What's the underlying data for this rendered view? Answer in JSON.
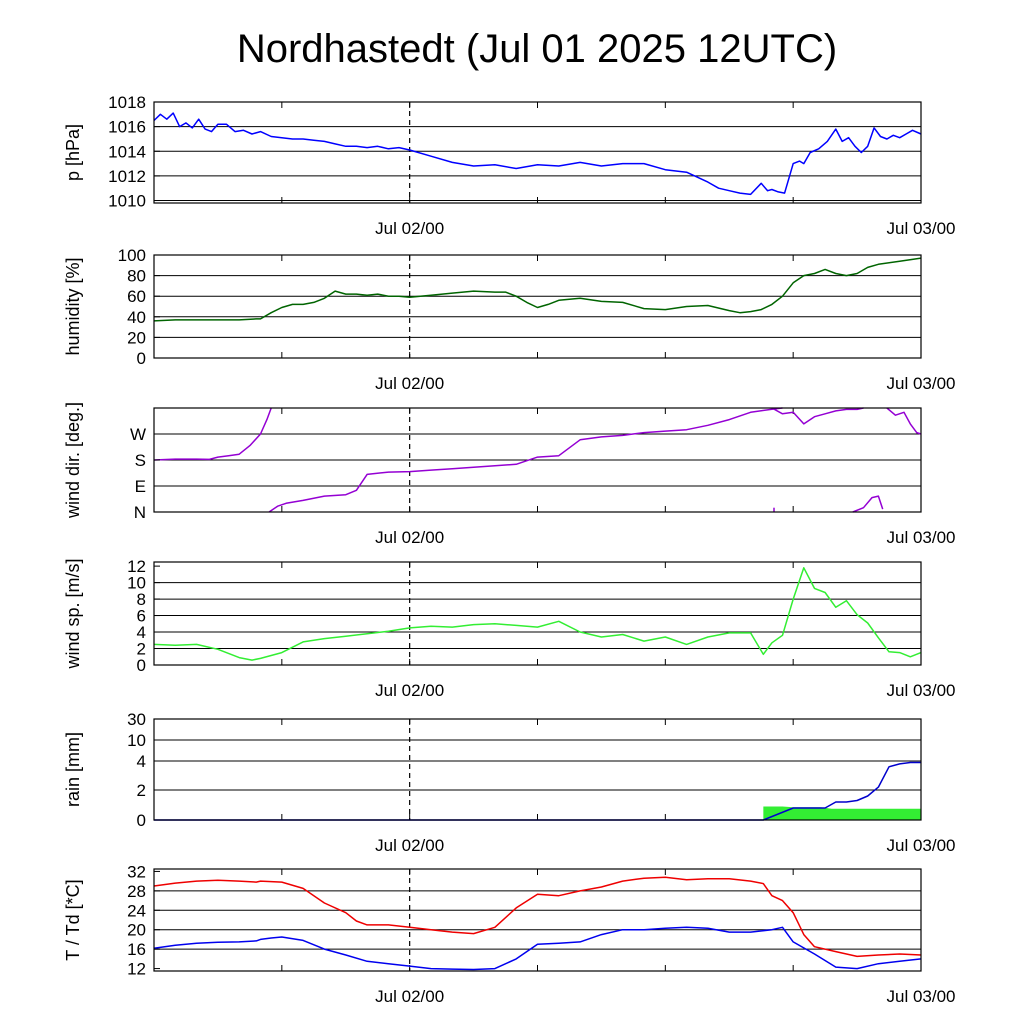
{
  "title": "Nordhastedt (Jul 01 2025 12UTC)",
  "colors": {
    "pressure": "#0000ff",
    "humidity": "#006400",
    "wind_dir": "#9400d3",
    "wind_speed": "#33ee33",
    "rain": "#0000cc",
    "rain_rate": "#33ee33",
    "temperature": "#ee0000",
    "dewpoint": "#0000ee"
  },
  "chart_data": [
    {
      "id": "pressure",
      "type": "line",
      "ylabel": "p [hPa]",
      "xlim": [
        0,
        36
      ],
      "x_ticks": [
        {
          "x": 12,
          "label": "Jul 02/00"
        },
        {
          "x": 36,
          "label": "Jul 03/00"
        }
      ],
      "ylim": [
        1009.8,
        1018
      ],
      "y_ticks": [
        {
          "v": 1010,
          "label": "1010"
        },
        {
          "v": 1012,
          "label": "1012"
        },
        {
          "v": 1014,
          "label": "1014"
        },
        {
          "v": 1016,
          "label": "1016"
        },
        {
          "v": 1018,
          "label": "1018"
        }
      ],
      "grid_y": [
        1010,
        1012,
        1014,
        1016
      ],
      "series": [
        {
          "color_key": "pressure",
          "x": [
            0,
            0.3,
            0.6,
            0.9,
            1.2,
            1.5,
            1.8,
            2.1,
            2.4,
            2.7,
            3.0,
            3.4,
            3.8,
            4.2,
            4.6,
            5.0,
            5.5,
            6.0,
            6.5,
            7.0,
            7.5,
            8.0,
            8.5,
            9.0,
            9.5,
            10.0,
            10.5,
            11.0,
            11.5,
            12.0,
            13.0,
            14.0,
            15.0,
            16.0,
            17.0,
            18.0,
            19.0,
            20.0,
            21.0,
            22.0,
            23.0,
            24.0,
            25.0,
            26.0,
            26.5,
            27.0,
            27.5,
            28.0,
            28.5,
            28.8,
            29.0,
            29.3,
            29.6,
            30.0,
            30.3,
            30.5,
            30.8,
            31.2,
            31.6,
            32.0,
            32.3,
            32.6,
            32.9,
            33.2,
            33.5,
            33.8,
            34.1,
            34.4,
            34.7,
            35.0,
            35.3,
            35.6,
            36.0
          ],
          "y": [
            1016.5,
            1017.0,
            1016.6,
            1017.1,
            1016.0,
            1016.3,
            1015.9,
            1016.6,
            1015.8,
            1015.6,
            1016.2,
            1016.2,
            1015.6,
            1015.7,
            1015.4,
            1015.6,
            1015.2,
            1015.1,
            1015.0,
            1015.0,
            1014.9,
            1014.8,
            1014.6,
            1014.4,
            1014.4,
            1014.3,
            1014.4,
            1014.2,
            1014.3,
            1014.1,
            1013.6,
            1013.1,
            1012.8,
            1012.9,
            1012.6,
            1012.9,
            1012.8,
            1013.1,
            1012.8,
            1013.0,
            1013.0,
            1012.5,
            1012.3,
            1011.5,
            1011.0,
            1010.8,
            1010.6,
            1010.5,
            1011.4,
            1010.8,
            1010.9,
            1010.7,
            1010.6,
            1013.0,
            1013.2,
            1013.0,
            1013.9,
            1014.2,
            1014.8,
            1015.8,
            1014.8,
            1015.1,
            1014.4,
            1013.9,
            1014.4,
            1015.9,
            1015.2,
            1015.0,
            1015.3,
            1015.1,
            1015.4,
            1015.7,
            1015.4
          ]
        }
      ]
    },
    {
      "id": "humidity",
      "type": "line",
      "ylabel": "humidity [%]",
      "xlim": [
        0,
        36
      ],
      "x_ticks": [
        {
          "x": 12,
          "label": "Jul 02/00"
        },
        {
          "x": 36,
          "label": "Jul 03/00"
        }
      ],
      "ylim": [
        0,
        100
      ],
      "y_ticks": [
        {
          "v": 0,
          "label": "0"
        },
        {
          "v": 20,
          "label": "20"
        },
        {
          "v": 40,
          "label": "40"
        },
        {
          "v": 60,
          "label": "60"
        },
        {
          "v": 80,
          "label": "80"
        },
        {
          "v": 100,
          "label": "100"
        }
      ],
      "grid_y": [
        20,
        40,
        60,
        80
      ],
      "series": [
        {
          "color_key": "humidity",
          "x": [
            0,
            1,
            2,
            3,
            4,
            4.8,
            5.0,
            5.5,
            6.0,
            6.5,
            7.0,
            7.5,
            8.0,
            8.5,
            9.0,
            9.5,
            10.0,
            10.5,
            11.0,
            11.5,
            12.0,
            13.0,
            14.0,
            15.0,
            16.0,
            16.5,
            17.0,
            17.5,
            18.0,
            18.5,
            19.0,
            20.0,
            21.0,
            22.0,
            23.0,
            24.0,
            25.0,
            26.0,
            27.0,
            27.5,
            28.0,
            28.5,
            29.0,
            29.5,
            30.0,
            30.5,
            31.0,
            31.5,
            32.0,
            32.5,
            33.0,
            33.5,
            34.0,
            35.0,
            36.0
          ],
          "y": [
            36,
            37,
            37,
            37,
            37,
            38,
            38,
            44,
            49,
            52,
            52,
            54,
            58,
            65,
            62,
            62,
            61,
            62,
            60,
            60,
            59,
            61,
            63,
            65,
            64,
            64,
            60,
            54,
            49,
            52,
            56,
            58,
            55,
            54,
            48,
            47,
            50,
            51,
            46,
            44,
            45,
            47,
            52,
            60,
            73,
            80,
            82,
            86,
            82,
            80,
            82,
            88,
            91,
            94,
            97
          ]
        }
      ]
    },
    {
      "id": "wind_dir",
      "type": "scatter",
      "ylabel": "wind dir. [deg.]",
      "xlim": [
        0,
        36
      ],
      "x_ticks": [
        {
          "x": 12,
          "label": "Jul 02/00"
        },
        {
          "x": 36,
          "label": "Jul 03/00"
        }
      ],
      "ylim": [
        0,
        360
      ],
      "y_ticks": [
        {
          "v": 0,
          "label": "N"
        },
        {
          "v": 90,
          "label": "E"
        },
        {
          "v": 180,
          "label": "S"
        },
        {
          "v": 270,
          "label": "W"
        }
      ],
      "grid_y": [
        90,
        180,
        270
      ],
      "series": [
        {
          "color_key": "wind_dir",
          "segments": [
            {
              "x": [
                0,
                1,
                2,
                2.6,
                3.0,
                3.5,
                4.0,
                4.5,
                5.0,
                5.3,
                5.5
              ],
              "y": [
                180,
                183,
                183,
                182,
                190,
                195,
                200,
                230,
                270,
                320,
                360
              ]
            },
            {
              "x": [
                5.4,
                5.8,
                6.2,
                7,
                8,
                9,
                9.5,
                10,
                11,
                12,
                13,
                14,
                15,
                16,
                17,
                18,
                19,
                20,
                21,
                22,
                23,
                24,
                25,
                26,
                27,
                28,
                29,
                29.5
              ],
              "y": [
                0,
                20,
                30,
                40,
                55,
                60,
                75,
                130,
                138,
                140,
                145,
                150,
                155,
                160,
                165,
                190,
                195,
                250,
                260,
                265,
                275,
                280,
                285,
                300,
                320,
                345,
                356,
                360
              ]
            },
            {
              "x": [
                29.0,
                29.5,
                30.0,
                30.5,
                31.0,
                31.5,
                32.0,
                32.5,
                33.0,
                33.3
              ],
              "y": [
                360,
                340,
                345,
                305,
                330,
                340,
                350,
                355,
                355,
                360
              ]
            },
            {
              "x": [
                34.4,
                34.8,
                35.2,
                35.5,
                35.8,
                36.0
              ],
              "y": [
                360,
                335,
                345,
                305,
                275,
                270
              ]
            },
            {
              "x": [
                29.1,
                29.1
              ],
              "y": [
                0,
                15
              ]
            },
            {
              "x": [
                32.8,
                33.3,
                33.7,
                34.0,
                34.2
              ],
              "y": [
                0,
                15,
                50,
                55,
                10
              ]
            }
          ]
        }
      ]
    },
    {
      "id": "wind_speed",
      "type": "line",
      "ylabel": "wind sp. [m/s]",
      "xlim": [
        0,
        36
      ],
      "x_ticks": [
        {
          "x": 12,
          "label": "Jul 02/00"
        },
        {
          "x": 36,
          "label": "Jul 03/00"
        }
      ],
      "ylim": [
        0,
        12.5
      ],
      "y_ticks": [
        {
          "v": 0,
          "label": "0"
        },
        {
          "v": 2,
          "label": "2"
        },
        {
          "v": 4,
          "label": "4"
        },
        {
          "v": 6,
          "label": "6"
        },
        {
          "v": 8,
          "label": "8"
        },
        {
          "v": 10,
          "label": "10"
        },
        {
          "v": 12,
          "label": "12"
        }
      ],
      "grid_y": [
        2,
        4,
        6,
        8,
        10
      ],
      "series": [
        {
          "color_key": "wind_speed",
          "x": [
            0,
            1,
            2,
            3,
            4,
            4.6,
            5.0,
            6.0,
            7.0,
            8.0,
            9.0,
            10.0,
            11.0,
            12.0,
            13.0,
            14.0,
            15.0,
            16.0,
            17.0,
            18.0,
            19.0,
            20.0,
            21.0,
            22.0,
            23.0,
            24.0,
            25.0,
            26.0,
            27.0,
            28.0,
            28.6,
            29.0,
            29.5,
            30.0,
            30.5,
            31.0,
            31.5,
            32.0,
            32.5,
            33.0,
            33.5,
            34.0,
            34.5,
            35.0,
            35.5,
            36.0
          ],
          "y": [
            2.5,
            2.4,
            2.5,
            1.9,
            0.9,
            0.6,
            0.8,
            1.5,
            2.8,
            3.2,
            3.5,
            3.8,
            4.1,
            4.5,
            4.7,
            4.6,
            4.9,
            5.0,
            4.8,
            4.6,
            5.3,
            4.0,
            3.4,
            3.7,
            2.9,
            3.4,
            2.5,
            3.4,
            3.9,
            3.9,
            1.3,
            2.7,
            3.6,
            8.0,
            11.8,
            9.3,
            8.8,
            7.0,
            7.8,
            6.1,
            5.1,
            3.3,
            1.6,
            1.5,
            1.0,
            1.5
          ]
        }
      ]
    },
    {
      "id": "rain",
      "type": "area",
      "ylabel": "rain [mm]",
      "xlim": [
        0,
        36
      ],
      "x_ticks": [
        {
          "x": 12,
          "label": "Jul 02/00"
        },
        {
          "x": 36,
          "label": "Jul 03/00"
        }
      ],
      "ylim": [
        0,
        30
      ],
      "y_ticks": [
        {
          "v": 0,
          "label": "0"
        },
        {
          "v": 2,
          "label": "2"
        },
        {
          "v": 4,
          "label": "4"
        },
        {
          "v": 10,
          "label": "10"
        },
        {
          "v": 30,
          "label": "30"
        }
      ],
      "grid_y": [
        2,
        4,
        10
      ],
      "rate_area": {
        "color_key": "rain_rate",
        "x": [
          28.6,
          29.0,
          29.5,
          30,
          31.3,
          31.8,
          32.5,
          33,
          34,
          35,
          36
        ],
        "y": [
          0.9,
          0.9,
          0.9,
          0.85,
          0.85,
          0.75,
          0.75,
          0.75,
          0.75,
          0.75,
          0.75
        ]
      },
      "series": [
        {
          "color_key": "rain",
          "x": [
            0,
            28.6,
            30.0,
            31.0,
            31.5,
            32.0,
            32.5,
            33.0,
            33.5,
            34.0,
            34.5,
            35.0,
            35.5,
            36.0
          ],
          "y": [
            0,
            0,
            0.8,
            0.8,
            0.8,
            1.2,
            1.2,
            1.3,
            1.6,
            2.2,
            3.6,
            3.8,
            3.9,
            3.9
          ]
        }
      ]
    },
    {
      "id": "temperature",
      "type": "line",
      "ylabel": "T / Td [*C]",
      "xlim": [
        0,
        36
      ],
      "x_ticks": [
        {
          "x": 12,
          "label": "Jul 02/00"
        },
        {
          "x": 36,
          "label": "Jul 03/00"
        }
      ],
      "ylim": [
        11.5,
        32.5
      ],
      "y_ticks": [
        {
          "v": 12,
          "label": "12"
        },
        {
          "v": 16,
          "label": "16"
        },
        {
          "v": 20,
          "label": "20"
        },
        {
          "v": 24,
          "label": "24"
        },
        {
          "v": 28,
          "label": "28"
        },
        {
          "v": 32,
          "label": "32"
        }
      ],
      "grid_y": [
        16,
        20,
        24,
        28
      ],
      "series": [
        {
          "name": "T",
          "color_key": "temperature",
          "x": [
            0,
            1,
            2,
            3,
            4,
            4.8,
            5.0,
            6.0,
            7.0,
            8.0,
            9.0,
            9.5,
            10.0,
            11.0,
            12.0,
            13.0,
            14.0,
            15.0,
            16.0,
            17.0,
            18.0,
            19.0,
            20.0,
            21.0,
            22.0,
            23.0,
            24.0,
            25.0,
            26.0,
            27.0,
            28.0,
            28.6,
            29.0,
            29.5,
            30.0,
            30.5,
            31.0,
            32.0,
            33.0,
            34.0,
            35.0,
            36.0
          ],
          "y": [
            29.0,
            29.6,
            30.0,
            30.2,
            30.0,
            29.8,
            30.0,
            29.8,
            28.5,
            25.5,
            23.5,
            21.8,
            21.0,
            21.0,
            20.5,
            20.0,
            19.5,
            19.2,
            20.5,
            24.5,
            27.3,
            27.0,
            28.0,
            28.8,
            30.0,
            30.6,
            30.8,
            30.3,
            30.5,
            30.5,
            30.0,
            29.5,
            27.0,
            26.0,
            23.5,
            19.0,
            16.5,
            15.5,
            14.5,
            14.8,
            15.0,
            14.8
          ]
        },
        {
          "name": "Td",
          "color_key": "dewpoint",
          "x": [
            0,
            1,
            2,
            3,
            4,
            4.8,
            5.0,
            5.5,
            6.0,
            7.0,
            8.0,
            9.0,
            10.0,
            11.0,
            12.0,
            13.0,
            14.0,
            15.0,
            16.0,
            17.0,
            18.0,
            19.0,
            20.0,
            21.0,
            22.0,
            23.0,
            24.0,
            25.0,
            26.0,
            27.0,
            28.0,
            29.0,
            29.5,
            30.0,
            31.0,
            32.0,
            33.0,
            34.0,
            35.0,
            36.0
          ],
          "y": [
            16.2,
            16.8,
            17.2,
            17.4,
            17.5,
            17.7,
            18.0,
            18.3,
            18.5,
            17.8,
            16.0,
            14.8,
            13.5,
            13.0,
            12.5,
            12.0,
            11.9,
            11.8,
            12.0,
            14.0,
            17.0,
            17.2,
            17.5,
            19.0,
            20.0,
            20.0,
            20.3,
            20.5,
            20.3,
            19.5,
            19.5,
            20.0,
            20.5,
            17.5,
            15.0,
            12.3,
            12.0,
            13.0,
            13.5,
            14.0
          ]
        }
      ]
    }
  ]
}
